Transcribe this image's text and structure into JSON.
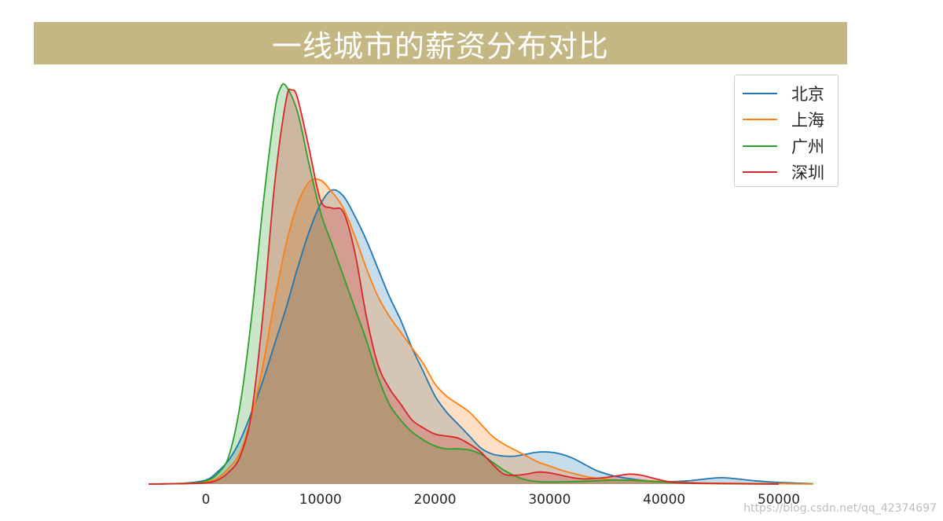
{
  "chart_data": {
    "type": "area",
    "title": "一线城市的薪资分布对比",
    "xlabel": "",
    "ylabel": "",
    "xlim": [
      -5000,
      53000
    ],
    "ylim": [
      0,
      1
    ],
    "xticks": [
      0,
      10000,
      20000,
      30000,
      40000,
      50000
    ],
    "grid": false,
    "legend": "top-right",
    "series": [
      {
        "name": "北京",
        "color": "#1f77b4",
        "fill": "#bcd3e8",
        "points": [
          [
            -5000,
            0
          ],
          [
            -2000,
            0.002
          ],
          [
            0,
            0.01
          ],
          [
            1000,
            0.03
          ],
          [
            2000,
            0.06
          ],
          [
            3000,
            0.11
          ],
          [
            4000,
            0.18
          ],
          [
            5000,
            0.26
          ],
          [
            6000,
            0.35
          ],
          [
            7000,
            0.44
          ],
          [
            8000,
            0.54
          ],
          [
            9000,
            0.63
          ],
          [
            10000,
            0.7
          ],
          [
            11000,
            0.735
          ],
          [
            12000,
            0.72
          ],
          [
            13000,
            0.67
          ],
          [
            14000,
            0.61
          ],
          [
            15000,
            0.54
          ],
          [
            16000,
            0.47
          ],
          [
            17000,
            0.41
          ],
          [
            18000,
            0.34
          ],
          [
            19000,
            0.28
          ],
          [
            20000,
            0.22
          ],
          [
            21000,
            0.18
          ],
          [
            22000,
            0.15
          ],
          [
            23000,
            0.12
          ],
          [
            24000,
            0.09
          ],
          [
            25000,
            0.075
          ],
          [
            26000,
            0.07
          ],
          [
            27000,
            0.07
          ],
          [
            28000,
            0.075
          ],
          [
            29000,
            0.08
          ],
          [
            30000,
            0.08
          ],
          [
            31000,
            0.075
          ],
          [
            32000,
            0.065
          ],
          [
            33000,
            0.05
          ],
          [
            34000,
            0.035
          ],
          [
            35000,
            0.025
          ],
          [
            36000,
            0.018
          ],
          [
            38000,
            0.01
          ],
          [
            40000,
            0.006
          ],
          [
            42000,
            0.008
          ],
          [
            44000,
            0.014
          ],
          [
            45000,
            0.016
          ],
          [
            46000,
            0.014
          ],
          [
            48000,
            0.008
          ],
          [
            50000,
            0.004
          ],
          [
            53000,
            0.001
          ]
        ]
      },
      {
        "name": "上海",
        "color": "#ff7f0e",
        "fill": "#fbd2ab",
        "points": [
          [
            -5000,
            0
          ],
          [
            -2000,
            0.002
          ],
          [
            0,
            0.005
          ],
          [
            1000,
            0.015
          ],
          [
            2000,
            0.04
          ],
          [
            3000,
            0.08
          ],
          [
            4000,
            0.17
          ],
          [
            5000,
            0.3
          ],
          [
            6000,
            0.46
          ],
          [
            7000,
            0.6
          ],
          [
            8000,
            0.7
          ],
          [
            9000,
            0.755
          ],
          [
            10000,
            0.76
          ],
          [
            11000,
            0.73
          ],
          [
            12000,
            0.69
          ],
          [
            13000,
            0.62
          ],
          [
            14000,
            0.54
          ],
          [
            15000,
            0.47
          ],
          [
            16000,
            0.42
          ],
          [
            17000,
            0.38
          ],
          [
            18000,
            0.34
          ],
          [
            19000,
            0.3
          ],
          [
            20000,
            0.25
          ],
          [
            21000,
            0.22
          ],
          [
            22000,
            0.2
          ],
          [
            23000,
            0.18
          ],
          [
            24000,
            0.15
          ],
          [
            25000,
            0.12
          ],
          [
            26000,
            0.1
          ],
          [
            27000,
            0.085
          ],
          [
            28000,
            0.07
          ],
          [
            29000,
            0.055
          ],
          [
            30000,
            0.045
          ],
          [
            31000,
            0.035
          ],
          [
            32000,
            0.027
          ],
          [
            33000,
            0.02
          ],
          [
            34000,
            0.015
          ],
          [
            35000,
            0.012
          ],
          [
            36000,
            0.01
          ],
          [
            37000,
            0.01
          ],
          [
            38000,
            0.009
          ],
          [
            40000,
            0.006
          ],
          [
            43000,
            0.003
          ],
          [
            46000,
            0.002
          ],
          [
            50000,
            0.001
          ],
          [
            53000,
            0
          ]
        ]
      },
      {
        "name": "广州",
        "color": "#2ca02c",
        "fill": "#c8e5c8",
        "points": [
          [
            -5000,
            0
          ],
          [
            -1500,
            0.002
          ],
          [
            0,
            0.008
          ],
          [
            1000,
            0.025
          ],
          [
            2000,
            0.07
          ],
          [
            3000,
            0.2
          ],
          [
            4000,
            0.42
          ],
          [
            5000,
            0.7
          ],
          [
            6000,
            0.93
          ],
          [
            6500,
            0.99
          ],
          [
            7000,
            0.995
          ],
          [
            8000,
            0.93
          ],
          [
            9000,
            0.8
          ],
          [
            10000,
            0.68
          ],
          [
            11000,
            0.6
          ],
          [
            12000,
            0.52
          ],
          [
            13000,
            0.44
          ],
          [
            14000,
            0.36
          ],
          [
            15000,
            0.27
          ],
          [
            16000,
            0.2
          ],
          [
            17000,
            0.16
          ],
          [
            18000,
            0.13
          ],
          [
            19000,
            0.11
          ],
          [
            20000,
            0.095
          ],
          [
            21000,
            0.088
          ],
          [
            22000,
            0.088
          ],
          [
            23000,
            0.085
          ],
          [
            24000,
            0.075
          ],
          [
            25000,
            0.055
          ],
          [
            26000,
            0.035
          ],
          [
            27000,
            0.02
          ],
          [
            28000,
            0.01
          ],
          [
            29000,
            0.006
          ],
          [
            30000,
            0.005
          ],
          [
            32000,
            0.006
          ],
          [
            34000,
            0.008
          ],
          [
            36000,
            0.01
          ],
          [
            38000,
            0.008
          ],
          [
            40000,
            0.005
          ],
          [
            42000,
            0.002
          ],
          [
            45000,
            0.001
          ],
          [
            50000,
            0
          ]
        ]
      },
      {
        "name": "深圳",
        "color": "#d62728",
        "fill": "#f0b9b9",
        "points": [
          [
            -5000,
            0
          ],
          [
            -2000,
            0.001
          ],
          [
            0,
            0.003
          ],
          [
            1000,
            0.01
          ],
          [
            2000,
            0.03
          ],
          [
            3000,
            0.07
          ],
          [
            4000,
            0.18
          ],
          [
            5000,
            0.43
          ],
          [
            6000,
            0.75
          ],
          [
            7000,
            0.96
          ],
          [
            7500,
            0.985
          ],
          [
            8000,
            0.965
          ],
          [
            9000,
            0.84
          ],
          [
            10000,
            0.71
          ],
          [
            11000,
            0.69
          ],
          [
            12000,
            0.68
          ],
          [
            13000,
            0.58
          ],
          [
            14000,
            0.42
          ],
          [
            15000,
            0.3
          ],
          [
            16000,
            0.24
          ],
          [
            17000,
            0.2
          ],
          [
            18000,
            0.16
          ],
          [
            19000,
            0.14
          ],
          [
            20000,
            0.125
          ],
          [
            21000,
            0.12
          ],
          [
            22000,
            0.115
          ],
          [
            23000,
            0.1
          ],
          [
            24000,
            0.08
          ],
          [
            25000,
            0.05
          ],
          [
            26000,
            0.025
          ],
          [
            27000,
            0.022
          ],
          [
            28000,
            0.025
          ],
          [
            29000,
            0.03
          ],
          [
            30000,
            0.028
          ],
          [
            31000,
            0.022
          ],
          [
            32000,
            0.016
          ],
          [
            33000,
            0.013
          ],
          [
            34000,
            0.014
          ],
          [
            35000,
            0.017
          ],
          [
            36000,
            0.021
          ],
          [
            37000,
            0.025
          ],
          [
            38000,
            0.022
          ],
          [
            39000,
            0.015
          ],
          [
            40000,
            0.008
          ],
          [
            41000,
            0.004
          ],
          [
            43000,
            0.002
          ],
          [
            46000,
            0.001
          ],
          [
            50000,
            0
          ]
        ]
      }
    ]
  },
  "watermark": "https://blog.csdn.net/qq_42374697"
}
